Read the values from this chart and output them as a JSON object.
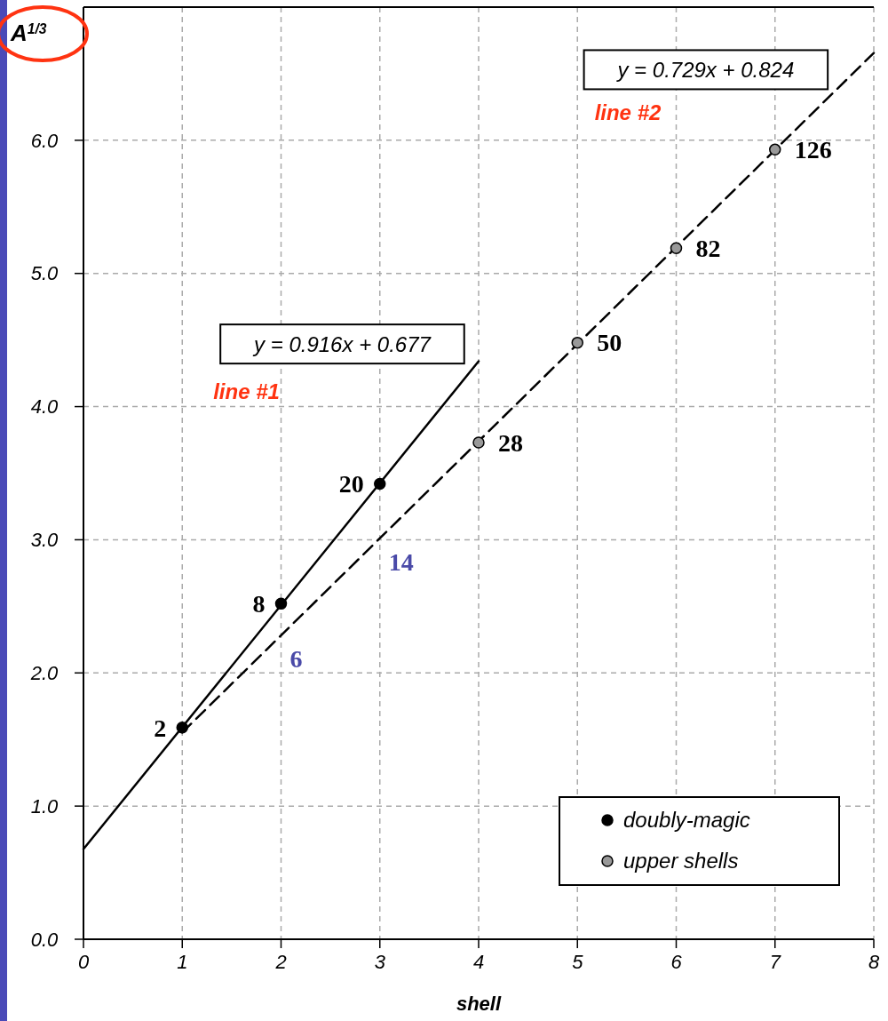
{
  "chart_data": {
    "type": "scatter",
    "xlabel": "shell",
    "ylabel": "A$^{1/3}$",
    "xlim": [
      0,
      8
    ],
    "ylim": [
      0,
      7
    ],
    "xticks": [
      0,
      1,
      2,
      3,
      4,
      5,
      6,
      7,
      8
    ],
    "yticks": [
      {
        "value": 0,
        "label": "0.0"
      },
      {
        "value": 1,
        "label": "1.0"
      },
      {
        "value": 2,
        "label": "2.0"
      },
      {
        "value": 3,
        "label": "3.0"
      },
      {
        "value": 4,
        "label": "4.0"
      },
      {
        "value": 5,
        "label": "5.0"
      },
      {
        "value": 6,
        "label": "6.0"
      }
    ],
    "grid": true,
    "legend": "bottom right",
    "marker": "circle",
    "series": [
      {
        "type": "line",
        "color": "#000000",
        "line_style": "solid",
        "marker": "none",
        "x": [
          0,
          4
        ],
        "values": [
          0.677,
          4.341
        ]
      },
      {
        "type": "line",
        "color": "#000000",
        "line_style": "dashed",
        "marker": "none",
        "x": [
          1,
          8
        ],
        "values": [
          1.553,
          6.656
        ]
      },
      {
        "name": "doubly-magic",
        "color": "#000000",
        "x": [
          1,
          2,
          3
        ],
        "values": [
          1.59,
          2.52,
          3.42
        ]
      },
      {
        "name": "upper shells",
        "color": "#999999",
        "x": [
          4,
          5,
          6,
          7
        ],
        "values": [
          3.73,
          4.48,
          5.19,
          5.93
        ]
      }
    ],
    "annotations": [
      {
        "text": "2",
        "x": 1,
        "y": 1.59
      },
      {
        "text": "8",
        "x": 2,
        "y": 2.52
      },
      {
        "text": "20",
        "x": 3,
        "y": 3.42
      },
      {
        "text": "6",
        "x": 2,
        "y": 2.282
      },
      {
        "text": "14",
        "x": 3,
        "y": 3.011
      },
      {
        "text": "28",
        "x": 4,
        "y": 3.73
      },
      {
        "text": "50",
        "x": 5,
        "y": 4.48
      },
      {
        "text": "82",
        "x": 6,
        "y": 5.19
      },
      {
        "text": "126",
        "x": 7,
        "y": 5.93
      },
      "y = 0.916x + 0.677",
      "line #1",
      "y = 0.729x + 0.824",
      "line #2"
    ]
  }
}
